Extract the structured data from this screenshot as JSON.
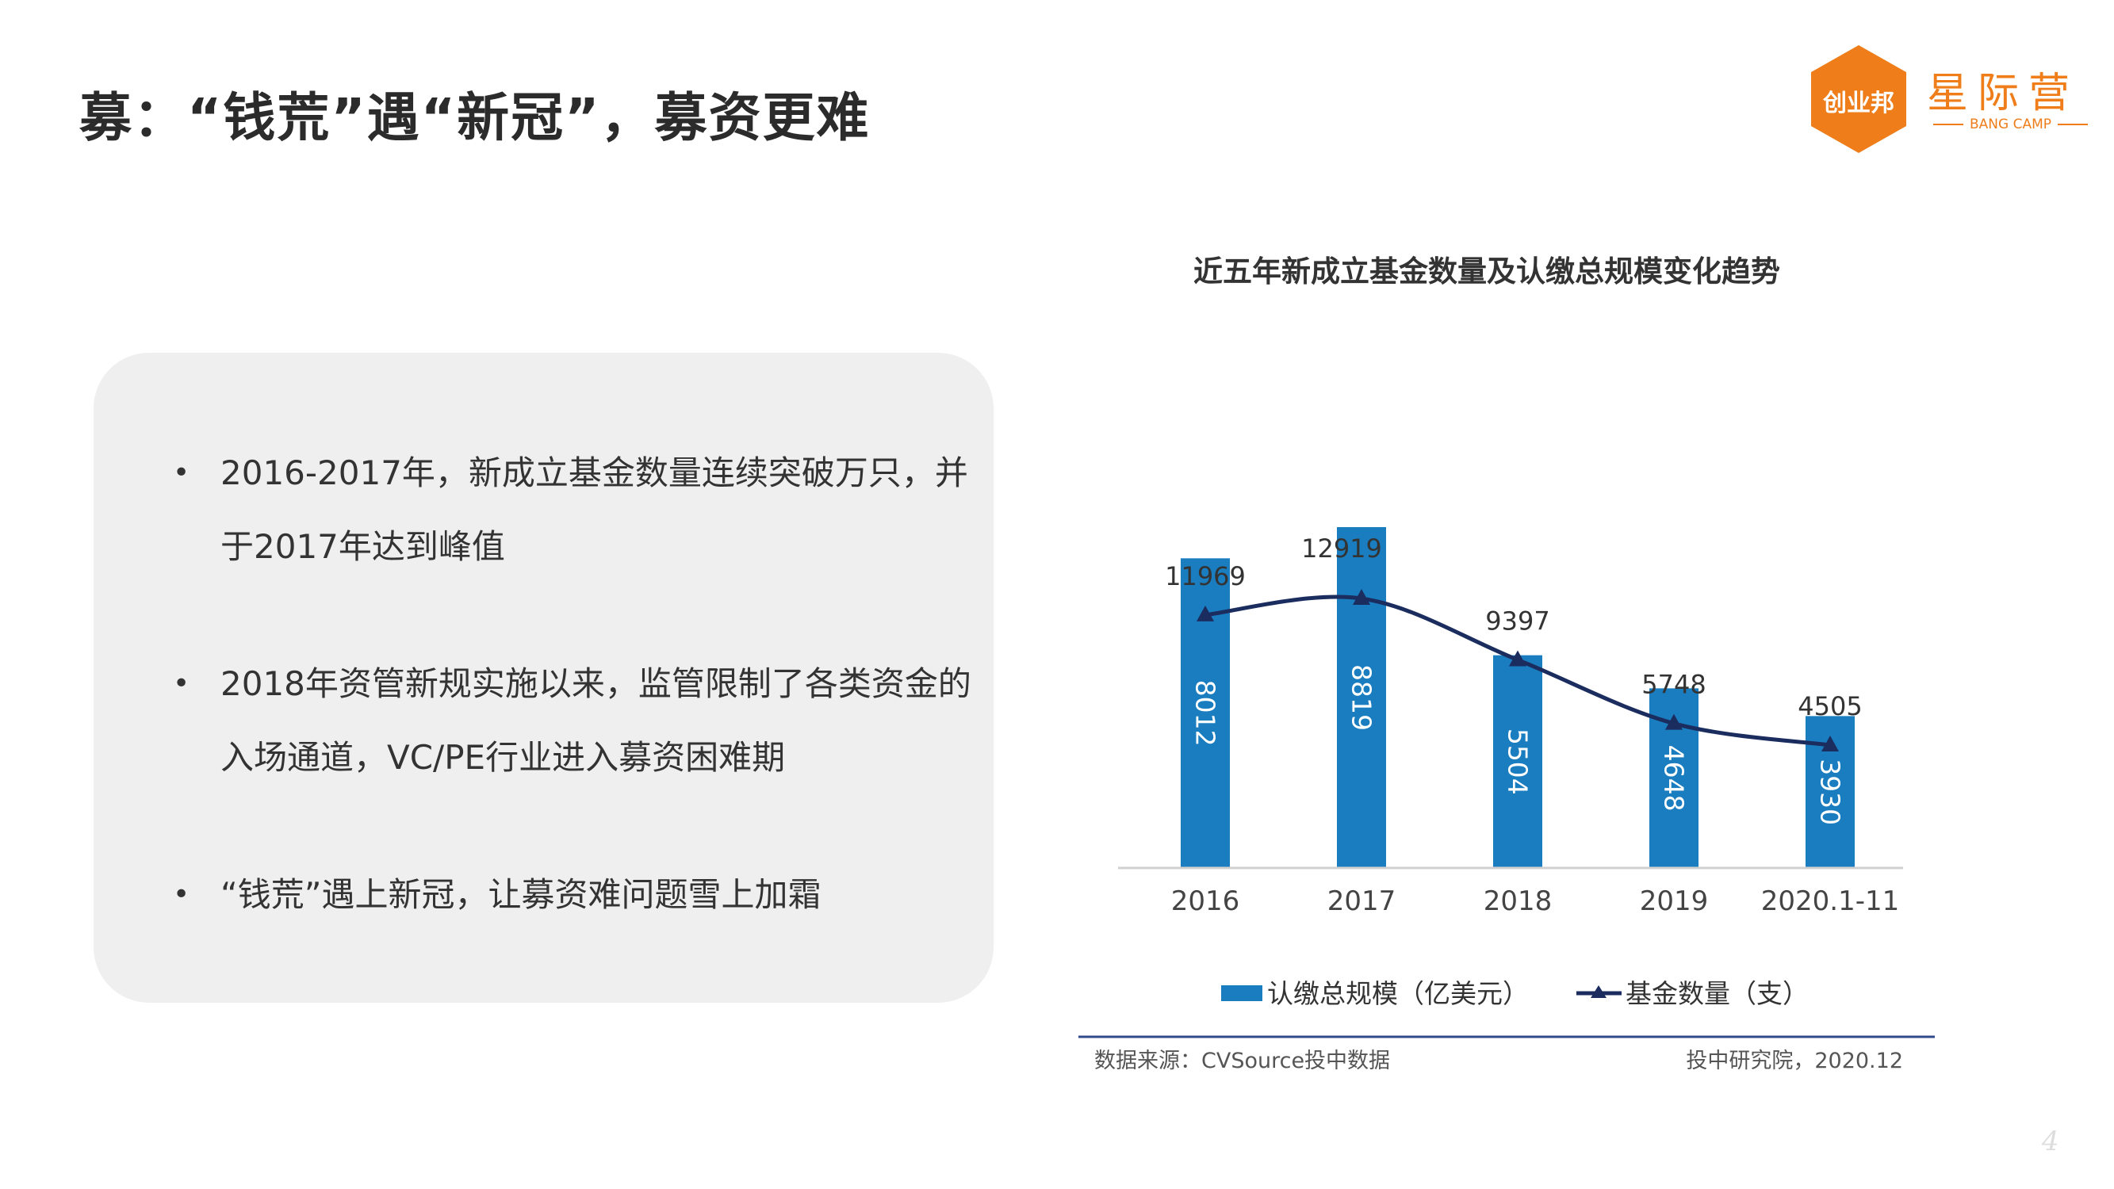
{
  "slide": {
    "title": "募：“钱荒”遇“新冠”，募资更难",
    "page_number": "4"
  },
  "logo": {
    "badge_text": "创业邦",
    "name": "星际营",
    "subtitle": "BANG CAMP",
    "color": "#ef7d1a"
  },
  "bullets": [
    "2016-2017年，新成立基金数量连续突破万只，并于2017年达到峰值",
    "2018年资管新规实施以来，监管限制了各类资金的入场通道，VC/PE行业进入募资困难期",
    "“钱荒”遇上新冠，让募资难问题雪上加霜"
  ],
  "chart_data": {
    "type": "bar+line",
    "title": "近五年新成立基金数量及认缴总规模变化趋势",
    "categories": [
      "2016",
      "2017",
      "2018",
      "2019",
      "2020.1-11"
    ],
    "series": [
      {
        "name": "认缴总规模（亿美元）",
        "type": "bar",
        "values": [
          8012,
          8819,
          5504,
          4648,
          3930
        ],
        "color": "#1a7dc0"
      },
      {
        "name": "基金数量（支）",
        "type": "line",
        "values": [
          11969,
          12919,
          9397,
          5748,
          4505
        ],
        "color": "#1b2c5e"
      }
    ],
    "legend_position": "bottom",
    "grid": false,
    "source": "数据来源：CVSource投中数据",
    "credit": "投中研究院，2020.12"
  }
}
